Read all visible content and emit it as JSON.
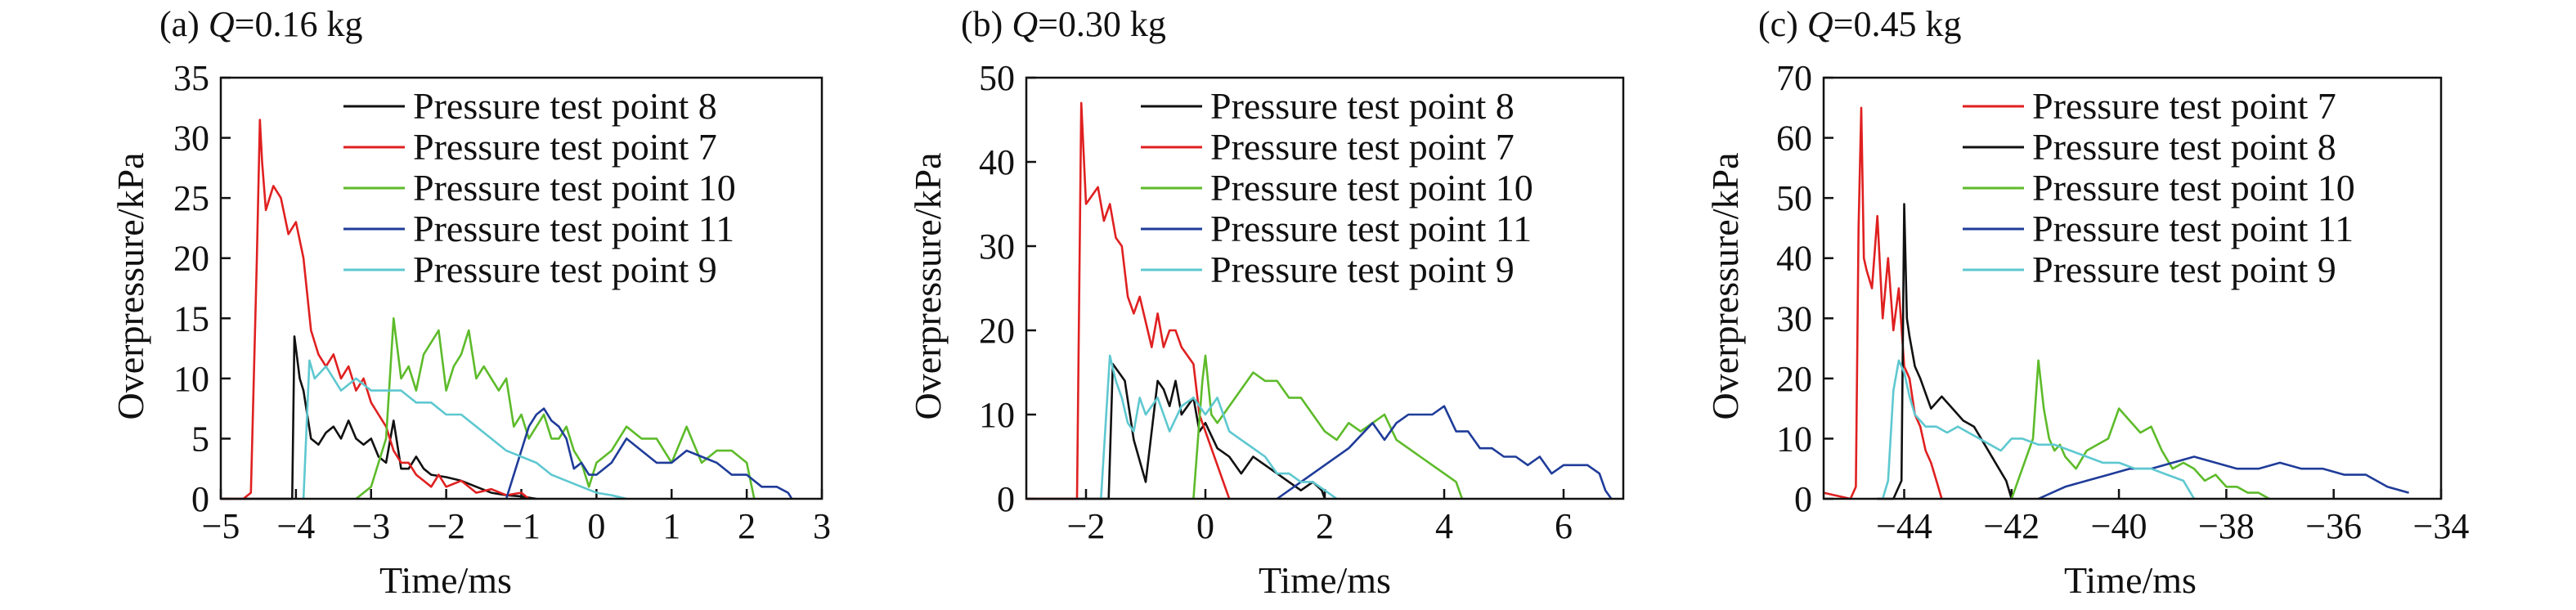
{
  "chart_data": [
    {
      "type": "line",
      "title_prefix": "(a) ",
      "title_var": "Q",
      "title_suffix": "=0.16 kg",
      "xlabel": "Time/ms",
      "ylabel": "Overpressure/kPa",
      "xlim": [
        -5,
        3
      ],
      "ylim": [
        0,
        35
      ],
      "xticks": [
        -5,
        -4,
        -3,
        -2,
        -1,
        0,
        1,
        2,
        3
      ],
      "xtick_labels": [
        "−5",
        "−4",
        "−3",
        "−2",
        "−1",
        "0",
        "1",
        "2",
        "3"
      ],
      "yticks": [
        0,
        5,
        10,
        15,
        20,
        25,
        30,
        35
      ],
      "ytick_labels": [
        "0",
        "5",
        "10",
        "15",
        "20",
        "25",
        "30",
        "35"
      ],
      "legend_position": "top-right",
      "series": [
        {
          "name": "Pressure test point 8",
          "color": "#111111",
          "x": [
            -5.0,
            -4.3,
            -4.05,
            -4.02,
            -3.95,
            -3.9,
            -3.85,
            -3.8,
            -3.7,
            -3.6,
            -3.5,
            -3.4,
            -3.3,
            -3.2,
            -3.1,
            -3.0,
            -2.9,
            -2.8,
            -2.7,
            -2.6,
            -2.5,
            -2.4,
            -2.3,
            -2.2,
            -2.0,
            -1.8,
            -1.6,
            -1.4,
            -1.2,
            -1.0,
            -0.8
          ],
          "y": [
            0,
            0,
            0,
            13.5,
            10,
            9,
            7,
            5,
            4.5,
            5.5,
            6,
            5,
            6.5,
            5,
            4.5,
            5,
            3.5,
            3,
            6.5,
            2.5,
            2.5,
            3.5,
            2.5,
            2,
            1.8,
            1.5,
            1,
            0.5,
            0.3,
            0.2,
            0
          ]
        },
        {
          "name": "Pressure test point 7",
          "color": "#e02020",
          "x": [
            -5.0,
            -4.7,
            -4.6,
            -4.52,
            -4.48,
            -4.45,
            -4.4,
            -4.3,
            -4.2,
            -4.1,
            -4.0,
            -3.9,
            -3.8,
            -3.7,
            -3.6,
            -3.5,
            -3.4,
            -3.3,
            -3.2,
            -3.1,
            -3.0,
            -2.9,
            -2.8,
            -2.7,
            -2.6,
            -2.5,
            -2.4,
            -2.3,
            -2.2,
            -2.1,
            -2.0,
            -1.8,
            -1.6,
            -1.4,
            -1.2,
            -1.0,
            -0.9
          ],
          "y": [
            0,
            0,
            0.5,
            20,
            31.5,
            28,
            24,
            26,
            25,
            22,
            23,
            20,
            14,
            12,
            11,
            12,
            10,
            11,
            9,
            10,
            8,
            7,
            6,
            4,
            3,
            3,
            2,
            1.5,
            1,
            2,
            1,
            1.5,
            0.5,
            0.8,
            0.3,
            0.5,
            0
          ]
        },
        {
          "name": "Pressure test point 10",
          "color": "#5dbb2a",
          "x": [
            -3.2,
            -3.0,
            -2.8,
            -2.7,
            -2.6,
            -2.5,
            -2.4,
            -2.3,
            -2.2,
            -2.1,
            -2.0,
            -1.9,
            -1.8,
            -1.7,
            -1.6,
            -1.5,
            -1.4,
            -1.3,
            -1.2,
            -1.1,
            -1.0,
            -0.9,
            -0.8,
            -0.7,
            -0.6,
            -0.5,
            -0.4,
            -0.3,
            -0.2,
            -0.1,
            0.0,
            0.2,
            0.4,
            0.6,
            0.8,
            1.0,
            1.2,
            1.4,
            1.6,
            1.8,
            2.0,
            2.1
          ],
          "y": [
            0,
            1,
            5,
            15,
            10,
            11,
            9,
            12,
            13,
            14,
            9,
            11,
            12,
            14,
            10,
            11,
            10,
            9,
            10,
            6,
            7,
            5,
            6,
            7,
            5,
            5,
            6,
            4,
            3,
            1,
            3,
            4,
            6,
            5,
            5,
            3,
            6,
            3,
            4,
            4,
            3,
            0
          ]
        },
        {
          "name": "Pressure test point 11",
          "color": "#1f3c99",
          "x": [
            -1.2,
            -1.0,
            -0.9,
            -0.8,
            -0.7,
            -0.6,
            -0.5,
            -0.4,
            -0.3,
            -0.2,
            -0.1,
            0.0,
            0.2,
            0.4,
            0.6,
            0.8,
            1.0,
            1.2,
            1.4,
            1.6,
            1.8,
            2.0,
            2.2,
            2.4,
            2.55,
            2.6
          ],
          "y": [
            0,
            4,
            6,
            7,
            7.5,
            6.5,
            6,
            5,
            2.5,
            3,
            2,
            2,
            3,
            5,
            4,
            3,
            3,
            4,
            3.5,
            3,
            2,
            2,
            1,
            1,
            0.5,
            0
          ]
        },
        {
          "name": "Pressure test point 9",
          "color": "#5ec8d0",
          "x": [
            -3.9,
            -3.82,
            -3.75,
            -3.6,
            -3.4,
            -3.2,
            -3.0,
            -2.8,
            -2.6,
            -2.4,
            -2.2,
            -2.0,
            -1.8,
            -1.6,
            -1.4,
            -1.2,
            -1.0,
            -0.8,
            -0.6,
            -0.4,
            -0.2,
            0.0,
            0.2,
            0.4
          ],
          "y": [
            0,
            11.5,
            10,
            11,
            9,
            10,
            9,
            9,
            9,
            8,
            8,
            7,
            7,
            6,
            5,
            4,
            3.5,
            3,
            2,
            1.5,
            1,
            0.5,
            0.3,
            0
          ]
        }
      ]
    },
    {
      "type": "line",
      "title_prefix": "(b) ",
      "title_var": "Q",
      "title_suffix": "=0.30 kg",
      "xlabel": "Time/ms",
      "ylabel": "Overpressure/kPa",
      "xlim": [
        -3,
        7
      ],
      "ylim": [
        0,
        50
      ],
      "xticks": [
        -2,
        0,
        2,
        4,
        6
      ],
      "xtick_labels": [
        "−2",
        "0",
        "2",
        "4",
        "6"
      ],
      "yticks": [
        0,
        10,
        20,
        30,
        40,
        50
      ],
      "ytick_labels": [
        "0",
        "10",
        "20",
        "30",
        "40",
        "50"
      ],
      "legend_position": "top-right",
      "series": [
        {
          "name": "Pressure test point 8",
          "color": "#111111",
          "x": [
            -3.0,
            -1.8,
            -1.62,
            -1.55,
            -1.45,
            -1.35,
            -1.2,
            -1.0,
            -0.9,
            -0.8,
            -0.7,
            -0.6,
            -0.5,
            -0.4,
            -0.3,
            -0.2,
            -0.1,
            0.0,
            0.2,
            0.4,
            0.6,
            0.8,
            1.0,
            1.2,
            1.4,
            1.6,
            1.8,
            1.95,
            2.0
          ],
          "y": [
            0,
            0,
            0,
            16,
            15,
            14,
            7,
            2,
            8,
            14,
            13,
            11,
            14,
            10,
            11,
            12,
            8,
            9,
            6,
            5,
            3,
            5,
            4,
            3,
            2,
            1,
            2,
            1,
            0
          ]
        },
        {
          "name": "Pressure test point 7",
          "color": "#e02020",
          "x": [
            -3.0,
            -2.3,
            -2.15,
            -2.08,
            -2.0,
            -1.9,
            -1.8,
            -1.7,
            -1.6,
            -1.5,
            -1.4,
            -1.3,
            -1.2,
            -1.1,
            -1.0,
            -0.9,
            -0.8,
            -0.7,
            -0.6,
            -0.5,
            -0.4,
            -0.3,
            -0.2,
            -0.1,
            0.0,
            0.1,
            0.2,
            0.3,
            0.4
          ],
          "y": [
            0,
            0,
            0,
            47,
            35,
            36,
            37,
            33,
            35,
            31,
            30,
            24,
            22,
            24,
            21,
            18,
            22,
            18,
            20,
            20,
            18,
            17,
            16,
            10,
            8,
            6,
            4,
            2,
            0
          ]
        },
        {
          "name": "Pressure test point 10",
          "color": "#5dbb2a",
          "x": [
            -0.2,
            -0.05,
            0.0,
            0.1,
            0.2,
            0.4,
            0.6,
            0.8,
            1.0,
            1.2,
            1.4,
            1.6,
            1.8,
            2.0,
            2.2,
            2.4,
            2.6,
            2.8,
            3.0,
            3.2,
            3.4,
            3.6,
            3.8,
            4.0,
            4.2,
            4.3
          ],
          "y": [
            0,
            14,
            17,
            10,
            9,
            11,
            13,
            15,
            14,
            14,
            12,
            12,
            10,
            8,
            7,
            9,
            8,
            9,
            10,
            7,
            6,
            5,
            4,
            3,
            2,
            0
          ]
        },
        {
          "name": "Pressure test point 11",
          "color": "#1f3c99",
          "x": [
            1.2,
            1.6,
            2.0,
            2.4,
            2.8,
            3.0,
            3.2,
            3.4,
            3.6,
            3.8,
            4.0,
            4.2,
            4.4,
            4.6,
            4.8,
            5.0,
            5.2,
            5.4,
            5.6,
            5.8,
            6.0,
            6.2,
            6.4,
            6.6,
            6.7,
            6.8
          ],
          "y": [
            0,
            2,
            4,
            6,
            9,
            7,
            9,
            10,
            10,
            10,
            11,
            8,
            8,
            6,
            6,
            5,
            5,
            4,
            5,
            3,
            4,
            4,
            4,
            3,
            1,
            0
          ]
        },
        {
          "name": "Pressure test point 9",
          "color": "#5ec8d0",
          "x": [
            -1.75,
            -1.6,
            -1.5,
            -1.4,
            -1.3,
            -1.2,
            -1.1,
            -1.0,
            -0.8,
            -0.6,
            -0.4,
            -0.2,
            0.0,
            0.2,
            0.4,
            0.6,
            0.8,
            1.0,
            1.2,
            1.4,
            1.6,
            1.8,
            2.0,
            2.2
          ],
          "y": [
            0,
            17,
            14,
            12,
            9,
            8,
            12,
            10,
            12,
            8,
            11,
            12,
            10,
            12,
            8,
            7,
            6,
            5,
            3,
            3,
            2,
            2,
            1,
            0
          ]
        }
      ]
    },
    {
      "type": "line",
      "title_prefix": "(c) ",
      "title_var": "Q",
      "title_suffix": "=0.45 kg",
      "xlabel": "Time/ms",
      "ylabel": "Overpressure/kPa",
      "xlim": [
        -45.5,
        -34
      ],
      "ylim": [
        0,
        70
      ],
      "xticks": [
        -44,
        -42,
        -40,
        -38,
        -36,
        -34
      ],
      "xtick_labels": [
        "−44",
        "−42",
        "−40",
        "−38",
        "−36",
        "−34"
      ],
      "yticks": [
        0,
        10,
        20,
        30,
        40,
        50,
        60,
        70
      ],
      "ytick_labels": [
        "0",
        "10",
        "20",
        "30",
        "40",
        "50",
        "60",
        "70"
      ],
      "legend_position": "top-right",
      "series": [
        {
          "name": "Pressure test point 7",
          "color": "#e02020",
          "x": [
            -45.5,
            -45.0,
            -44.9,
            -44.85,
            -44.8,
            -44.75,
            -44.7,
            -44.6,
            -44.5,
            -44.4,
            -44.3,
            -44.2,
            -44.1,
            -44.0,
            -43.9,
            -43.8,
            -43.7,
            -43.6,
            -43.5,
            -43.4,
            -43.3
          ],
          "y": [
            1,
            0,
            2,
            45,
            65,
            40,
            38,
            35,
            47,
            30,
            40,
            28,
            35,
            22,
            20,
            14,
            12,
            8,
            6,
            3,
            0
          ]
        },
        {
          "name": "Pressure test point 8",
          "color": "#111111",
          "x": [
            -44.5,
            -44.2,
            -44.05,
            -44.0,
            -43.95,
            -43.9,
            -43.8,
            -43.7,
            -43.5,
            -43.3,
            -43.1,
            -42.9,
            -42.7,
            -42.5,
            -42.3,
            -42.1,
            -42.0
          ],
          "y": [
            0,
            0,
            3,
            49,
            30,
            27,
            22,
            20,
            15,
            17,
            15,
            13,
            12,
            9,
            6,
            3,
            0
          ]
        },
        {
          "name": "Pressure test point 10",
          "color": "#5dbb2a",
          "x": [
            -42.0,
            -41.8,
            -41.6,
            -41.5,
            -41.4,
            -41.3,
            -41.2,
            -41.1,
            -41.0,
            -40.8,
            -40.6,
            -40.4,
            -40.2,
            -40.0,
            -39.8,
            -39.6,
            -39.4,
            -39.2,
            -39.0,
            -38.8,
            -38.6,
            -38.4,
            -38.2,
            -38.0,
            -37.8,
            -37.6,
            -37.4,
            -37.2
          ],
          "y": [
            0,
            5,
            10,
            23,
            15,
            10,
            8,
            9,
            7,
            5,
            8,
            9,
            10,
            15,
            13,
            11,
            12,
            8,
            5,
            6,
            5,
            3,
            4,
            2,
            2,
            1,
            1,
            0
          ]
        },
        {
          "name": "Pressure test point 11",
          "color": "#1f3c99",
          "x": [
            -41.5,
            -41.0,
            -40.6,
            -40.2,
            -39.8,
            -39.4,
            -39.0,
            -38.6,
            -38.2,
            -37.8,
            -37.4,
            -37.0,
            -36.6,
            -36.2,
            -35.8,
            -35.4,
            -35.0,
            -34.6
          ],
          "y": [
            0,
            2,
            3,
            4,
            5,
            5,
            6,
            7,
            6,
            5,
            5,
            6,
            5,
            5,
            4,
            4,
            2,
            1
          ]
        },
        {
          "name": "Pressure test point 9",
          "color": "#5ec8d0",
          "x": [
            -44.4,
            -44.3,
            -44.2,
            -44.1,
            -44.0,
            -43.9,
            -43.8,
            -43.6,
            -43.4,
            -43.2,
            -43.0,
            -42.8,
            -42.6,
            -42.4,
            -42.2,
            -42.0,
            -41.8,
            -41.5,
            -41.2,
            -40.9,
            -40.6,
            -40.3,
            -40.0,
            -39.7,
            -39.4,
            -39.1,
            -38.8,
            -38.6
          ],
          "y": [
            0,
            3,
            18,
            23,
            21,
            17,
            14,
            12,
            12,
            11,
            12,
            11,
            10,
            9,
            8,
            10,
            10,
            9,
            9,
            8,
            7,
            6,
            6,
            5,
            5,
            4,
            3,
            0
          ]
        }
      ]
    }
  ]
}
